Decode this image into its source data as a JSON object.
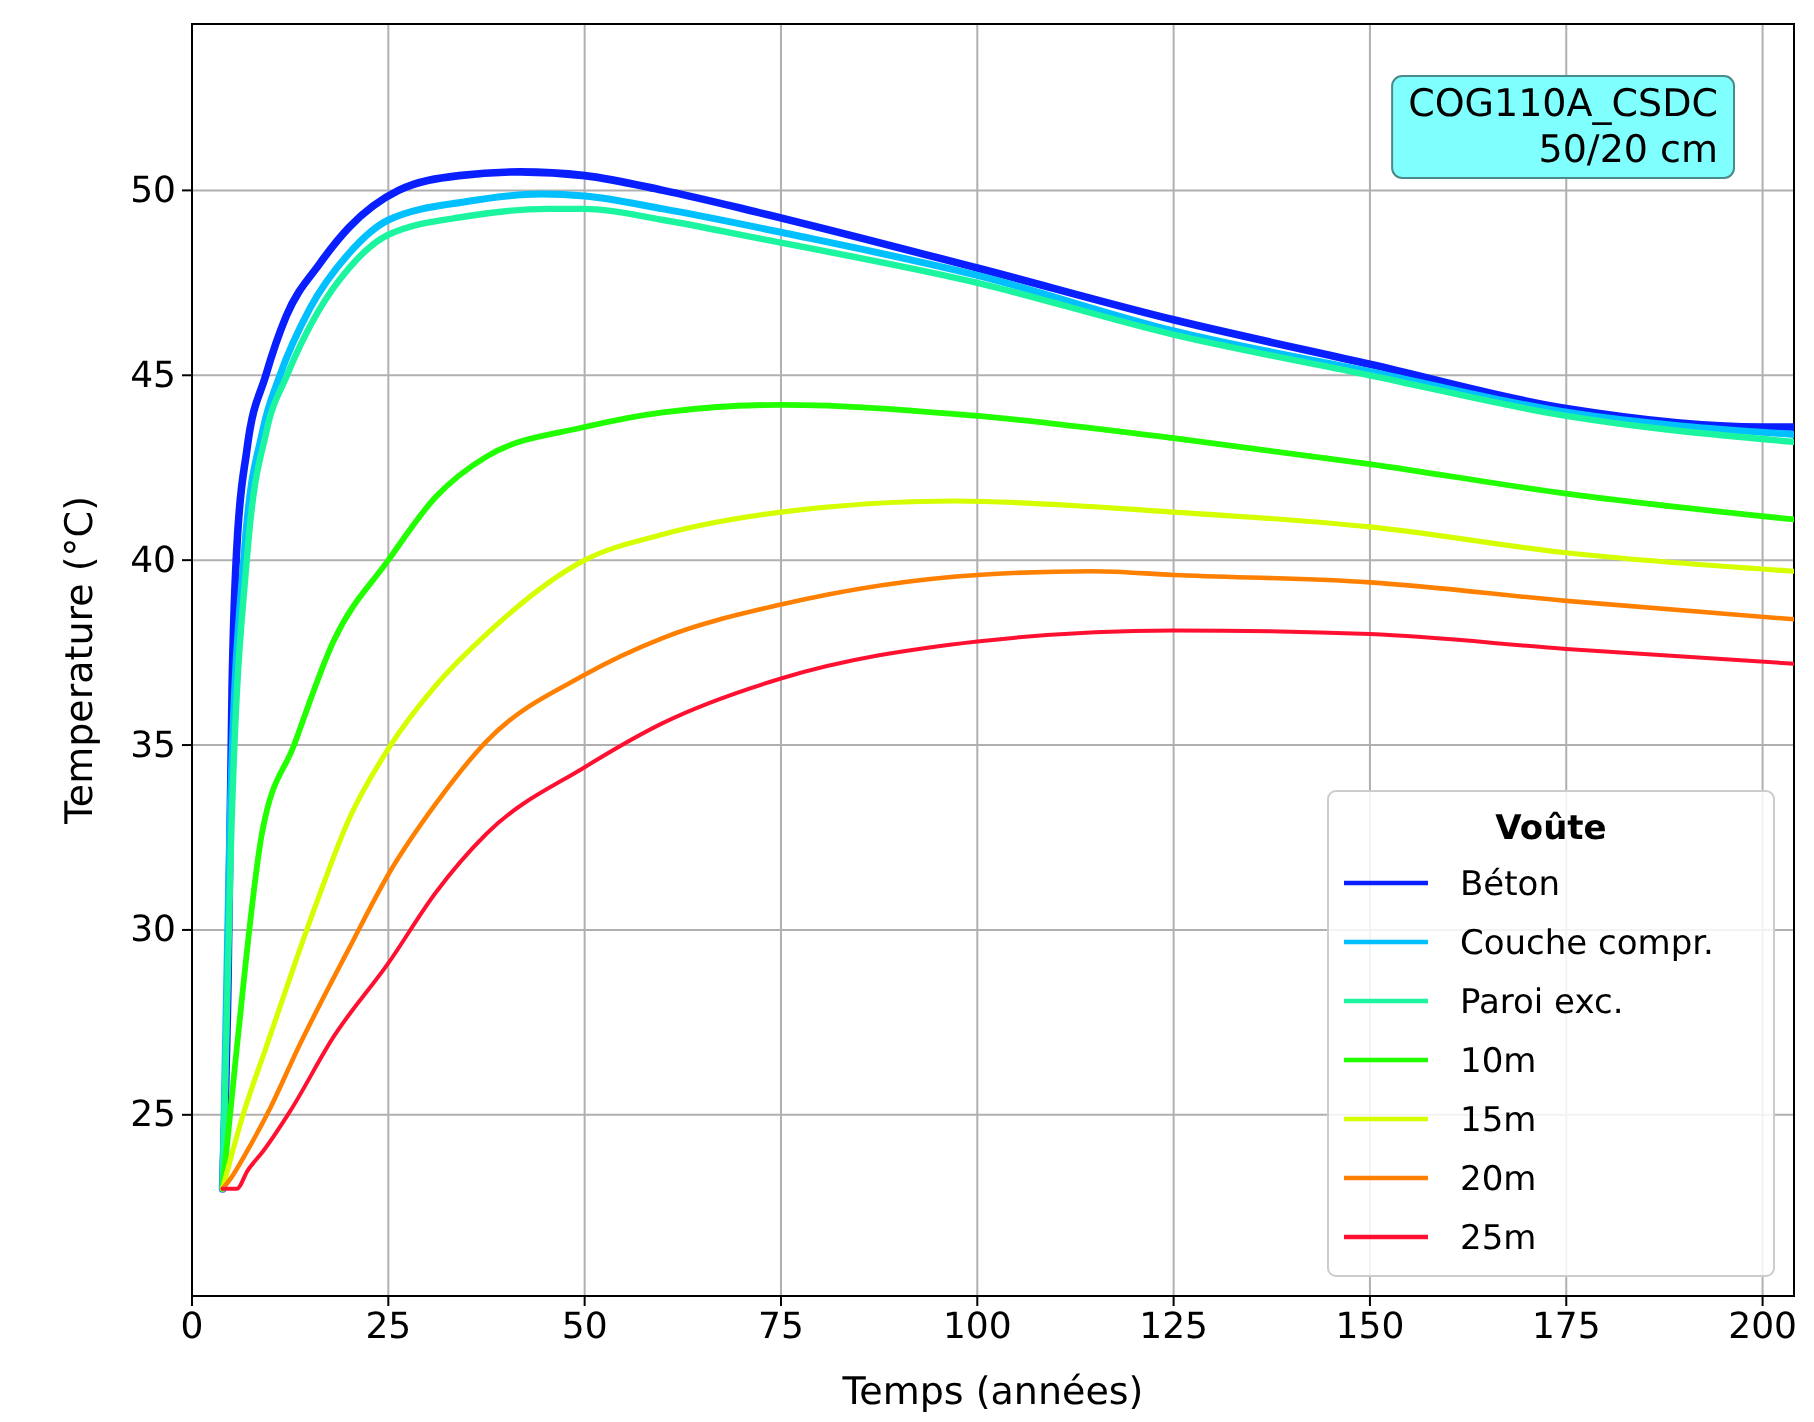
{
  "chart_data": {
    "type": "line",
    "xlabel": "Temps (années)",
    "ylabel": "Temperature (°C)",
    "legend_title": "Voûte",
    "legend": "bottom right",
    "grid": true,
    "xlim": [
      0,
      204
    ],
    "xticks": [
      0,
      25,
      50,
      75,
      100,
      125,
      150,
      175,
      200
    ],
    "ylim": [
      20.1,
      54.5
    ],
    "yticks": [
      25,
      30,
      35,
      40,
      45,
      50
    ],
    "annotations": [
      "COG110A_CSDC\n50/20 cm"
    ],
    "series": [
      {
        "name": "Béton",
        "color": "#0a1fff",
        "x": [
          3.9,
          4.6,
          5.1,
          5.7,
          7,
          9.4,
          12,
          16.2,
          20,
          26.3,
          34,
          41.8,
          50,
          60,
          72.2,
          100,
          125,
          150,
          175,
          200,
          204
        ],
        "values": [
          23,
          28.8,
          36.5,
          40.3,
          43,
          45,
          46.6,
          48,
          49,
          50,
          50.4,
          50.5,
          50.4,
          50,
          49.4,
          47.9,
          46.5,
          45.3,
          44.1,
          43.6,
          43.6
        ]
      },
      {
        "name": "Couche compr.",
        "color": "#00c0ff",
        "x": [
          3.9,
          4.8,
          6.7,
          9,
          11.2,
          15,
          20,
          25,
          35,
          44.5,
          50,
          60,
          76.5,
          100,
          125,
          150,
          175,
          204
        ],
        "values": [
          23,
          32.6,
          40.3,
          43.5,
          45,
          46.8,
          48.3,
          49.2,
          49.7,
          49.9,
          49.85,
          49.5,
          48.8,
          47.7,
          46.2,
          45.1,
          44,
          43.4
        ]
      },
      {
        "name": "Paroi exc.",
        "color": "#1cf5a0",
        "x": [
          3.9,
          5,
          7.1,
          9.5,
          12.1,
          16,
          20,
          25,
          35,
          45.4,
          50,
          60,
          72.2,
          100,
          125,
          150,
          175,
          204
        ],
        "values": [
          23,
          32.6,
          40.3,
          43.5,
          45,
          46.7,
          47.9,
          48.8,
          49.3,
          49.5,
          49.5,
          49.2,
          48.7,
          47.5,
          46.1,
          45,
          43.9,
          43.2
        ]
      },
      {
        "name": "10m",
        "color": "#22ff00",
        "x": [
          3.9,
          5.7,
          8.9,
          13,
          18,
          25,
          31,
          37.5,
          50,
          60,
          75,
          100,
          125,
          150,
          175,
          204
        ],
        "values": [
          23,
          26.8,
          32.6,
          35,
          37.8,
          40,
          41.7,
          42.8,
          43.6,
          44,
          44.2,
          43.9,
          43.3,
          42.6,
          41.8,
          41.1
        ]
      },
      {
        "name": "15m",
        "color": "#d4ff00",
        "x": [
          3.9,
          6.5,
          9.4,
          15.8,
          20,
          25,
          31,
          37.5,
          50,
          60,
          75,
          97,
          125,
          150,
          175,
          204
        ],
        "values": [
          23,
          25,
          26.8,
          30.7,
          33,
          34.9,
          36.6,
          38,
          40,
          40.7,
          41.3,
          41.6,
          41.3,
          40.9,
          40.2,
          39.7
        ]
      },
      {
        "name": "20m",
        "color": "#ff8000",
        "x": [
          3.9,
          5,
          6.7,
          10,
          13.5,
          20,
          25,
          31,
          37.5,
          50,
          60,
          75,
          100,
          114.7,
          125,
          150,
          175,
          204
        ],
        "values": [
          23,
          23.3,
          23.9,
          25.2,
          26.8,
          29.5,
          31.5,
          33.4,
          35.1,
          36.9,
          37.9,
          38.8,
          39.6,
          39.7,
          39.6,
          39.4,
          38.9,
          38.4
        ]
      },
      {
        "name": "25m",
        "color": "#ff1030",
        "x": [
          3.9,
          5.7,
          7.1,
          9,
          12.5,
          18,
          25,
          31,
          37.5,
          50,
          60,
          75,
          100,
          125,
          150,
          175,
          204
        ],
        "values": [
          23,
          23,
          23.5,
          24,
          25.1,
          27.1,
          29.1,
          31,
          32.6,
          34.4,
          35.6,
          36.8,
          37.8,
          38.1,
          38,
          37.6,
          37.2
        ]
      }
    ]
  }
}
